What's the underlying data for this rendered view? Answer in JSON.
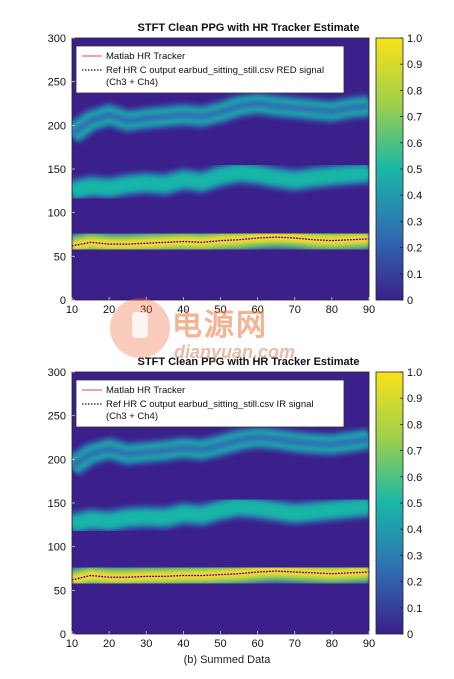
{
  "colors": {
    "background": "#3b1f8a",
    "band_low": "#2f6fb3",
    "band_mid": "#19b7a8",
    "band_high": "#f2de26",
    "matlab_line": "#f4a2a6",
    "ref_line": "#111111"
  },
  "watermark": {
    "text": "电源网",
    "url": "dianyuan.com"
  },
  "caption": "(b) Summed Data",
  "chart_data": [
    {
      "type": "heatmap",
      "title": "STFT Clean PPG with HR Tracker Estimate",
      "xlabel": "",
      "ylabel": "",
      "xlim": [
        10,
        90
      ],
      "ylim": [
        0,
        300
      ],
      "xticks": [
        "10",
        "20",
        "30",
        "40",
        "50",
        "60",
        "70",
        "80",
        "90"
      ],
      "yticks": [
        "0",
        "50",
        "100",
        "150",
        "200",
        "250",
        "300"
      ],
      "colorbar": {
        "range": [
          0,
          1
        ],
        "ticks": [
          "0",
          "0.1",
          "0.2",
          "0.3",
          "0.4",
          "0.5",
          "0.6",
          "0.7",
          "0.8",
          "0.9",
          "1.0"
        ]
      },
      "legend": {
        "placement": "top-left",
        "entries": [
          "Matlab HR Tracker",
          "Ref HR C output earbud_sitting_still.csv RED signal (Ch3 + Ch4)"
        ]
      },
      "x": [
        10,
        15,
        20,
        25,
        30,
        35,
        40,
        45,
        50,
        55,
        60,
        65,
        70,
        75,
        80,
        85,
        90
      ],
      "series": [
        {
          "name": "Matlab HR Tracker",
          "values": [
            62,
            66,
            64,
            64,
            65,
            66,
            67,
            66,
            68,
            69,
            71,
            72,
            71,
            69,
            68,
            69,
            70
          ]
        },
        {
          "name": "Ref HR C output earbud_sitting_still.csv RED signal (Ch3 + Ch4)",
          "values": [
            62,
            66,
            64,
            64,
            65,
            66,
            67,
            66,
            68,
            69,
            71,
            72,
            71,
            69,
            68,
            69,
            70
          ]
        }
      ],
      "bands": [
        {
          "level": 0.95,
          "values": [
            62,
            66,
            64,
            64,
            65,
            66,
            67,
            66,
            68,
            69,
            71,
            72,
            71,
            69,
            68,
            69,
            70
          ]
        },
        {
          "level": 0.45,
          "values": [
            125,
            130,
            128,
            132,
            134,
            132,
            138,
            135,
            142,
            146,
            144,
            140,
            137,
            140,
            142,
            144,
            145
          ]
        },
        {
          "level": 0.3,
          "values": [
            190,
            205,
            212,
            205,
            208,
            210,
            212,
            210,
            215,
            222,
            225,
            222,
            220,
            218,
            216,
            220,
            222
          ]
        }
      ]
    },
    {
      "type": "heatmap",
      "title": "STFT Clean PPG with HR Tracker Estimate",
      "xlabel": "(b) Summed Data",
      "ylabel": "",
      "xlim": [
        10,
        90
      ],
      "ylim": [
        0,
        300
      ],
      "xticks": [
        "10",
        "20",
        "30",
        "40",
        "50",
        "60",
        "70",
        "80",
        "90"
      ],
      "yticks": [
        "0",
        "50",
        "100",
        "150",
        "200",
        "250",
        "300"
      ],
      "colorbar": {
        "range": [
          0,
          1
        ],
        "ticks": [
          "0",
          "0.1",
          "0.2",
          "0.3",
          "0.4",
          "0.5",
          "0.6",
          "0.7",
          "0.8",
          "0.9",
          "1.0"
        ]
      },
      "legend": {
        "placement": "top-left",
        "entries": [
          "Matlab HR Tracker",
          "Ref HR C output earbud_sitting_still.csv IR signal (Ch3 + Ch4)"
        ]
      },
      "x": [
        10,
        15,
        20,
        25,
        30,
        35,
        40,
        45,
        50,
        55,
        60,
        65,
        70,
        75,
        80,
        85,
        90
      ],
      "series": [
        {
          "name": "Matlab HR Tracker",
          "values": [
            62,
            67,
            65,
            65,
            66,
            66,
            67,
            67,
            68,
            69,
            71,
            72,
            71,
            70,
            69,
            70,
            71
          ]
        },
        {
          "name": "Ref HR C output earbud_sitting_still.csv IR signal (Ch3 + Ch4)",
          "values": [
            62,
            67,
            65,
            65,
            66,
            66,
            67,
            67,
            68,
            69,
            71,
            72,
            71,
            70,
            69,
            70,
            71
          ]
        }
      ],
      "bands": [
        {
          "level": 0.95,
          "values": [
            62,
            67,
            65,
            65,
            66,
            66,
            67,
            67,
            68,
            69,
            71,
            72,
            71,
            70,
            69,
            70,
            71
          ]
        },
        {
          "level": 0.45,
          "values": [
            126,
            131,
            129,
            133,
            134,
            133,
            138,
            136,
            142,
            146,
            144,
            141,
            138,
            140,
            142,
            144,
            146
          ]
        },
        {
          "level": 0.3,
          "values": [
            192,
            206,
            212,
            206,
            208,
            210,
            213,
            211,
            216,
            222,
            225,
            223,
            220,
            218,
            217,
            220,
            223
          ]
        }
      ]
    }
  ]
}
